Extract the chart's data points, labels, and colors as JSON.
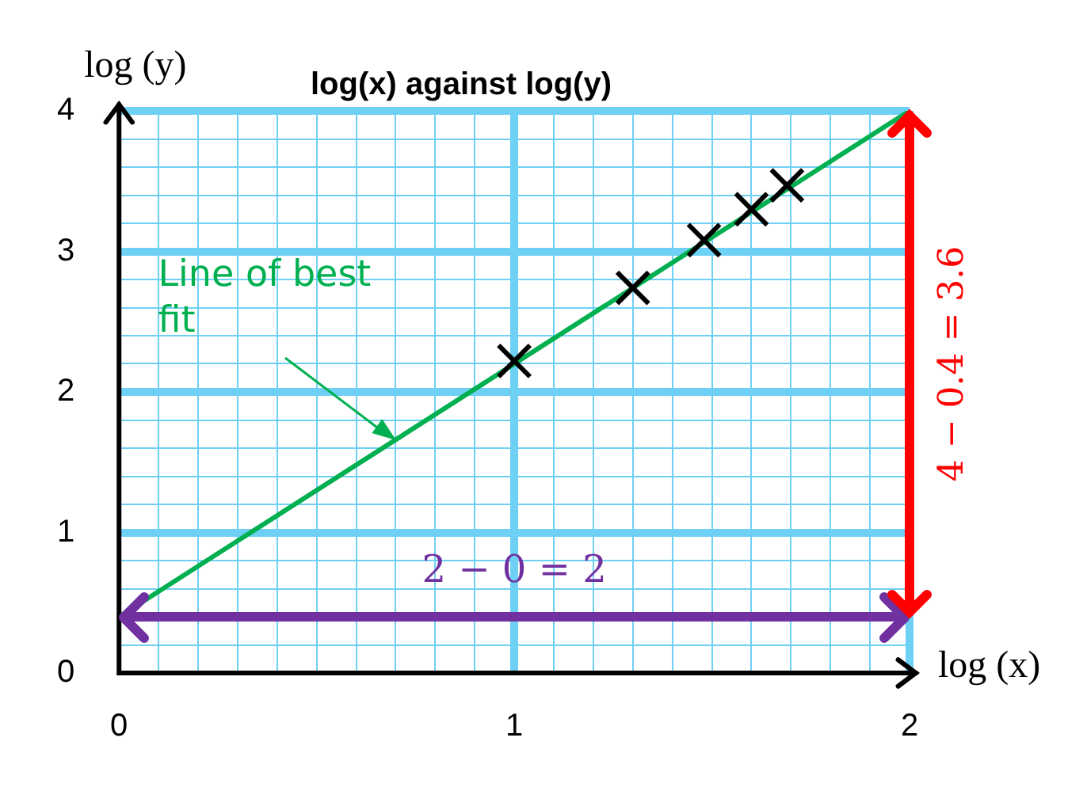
{
  "chart_data": {
    "type": "scatter",
    "title": "log(x) against log(y)",
    "xlabel": "log (x)",
    "ylabel": "log (y)",
    "series": [
      {
        "color": "#000000",
        "marker": "cross",
        "x": [
          1.0,
          1.3,
          1.48,
          1.6,
          1.69
        ],
        "values": [
          2.22,
          2.74,
          3.08,
          3.3,
          3.47
        ]
      },
      {
        "type": "line",
        "color": "#00b050",
        "marker": "none",
        "x": [
          0,
          2
        ],
        "values": [
          0.4,
          4
        ]
      }
    ],
    "xlim": [
      0,
      2
    ],
    "ylim": [
      0,
      4
    ],
    "xticks": [
      0,
      {
        "value": 0.1,
        "label": null
      },
      {
        "value": 0.2,
        "label": null
      },
      {
        "value": 0.3,
        "label": null
      },
      {
        "value": 0.4,
        "label": null
      },
      {
        "value": 0.5,
        "label": null
      },
      {
        "value": 0.6,
        "label": null
      },
      {
        "value": 0.7,
        "label": null
      },
      {
        "value": 0.8,
        "label": null
      },
      {
        "value": 0.9,
        "label": null
      },
      1,
      {
        "value": 1.1,
        "label": null
      },
      {
        "value": 1.2,
        "label": null
      },
      {
        "value": 1.3,
        "label": null
      },
      {
        "value": 1.4,
        "label": null
      },
      {
        "value": 1.5,
        "label": null
      },
      {
        "value": 1.6,
        "label": null
      },
      {
        "value": 1.7,
        "label": null
      },
      {
        "value": 1.8,
        "label": null
      },
      {
        "value": 1.9,
        "label": null
      },
      2
    ],
    "yticks": [
      0,
      {
        "value": 0.2,
        "label": null
      },
      {
        "value": 0.4,
        "label": null
      },
      {
        "value": 0.6,
        "label": null
      },
      {
        "value": 0.8,
        "label": null
      },
      1,
      {
        "value": 1.2,
        "label": null
      },
      {
        "value": 1.4,
        "label": null
      },
      {
        "value": 1.6,
        "label": null
      },
      {
        "value": 1.8,
        "label": null
      },
      2,
      {
        "value": 2.2,
        "label": null
      },
      {
        "value": 2.4,
        "label": null
      },
      {
        "value": 2.6,
        "label": null
      },
      {
        "value": 2.8,
        "label": null
      },
      3,
      {
        "value": 3.2,
        "label": null
      },
      {
        "value": 3.4,
        "label": null
      },
      {
        "value": 3.6,
        "label": null
      },
      {
        "value": 3.8,
        "label": null
      },
      4
    ],
    "ref_lines": [
      {
        "axis": "y",
        "value": 0.4,
        "label": "2 − 0 = 2",
        "color": "#7030a0"
      }
    ],
    "grid": true,
    "legend": false,
    "annotations": [
      "Line of best fit",
      "4 − 0.4 = 3.6"
    ]
  }
}
